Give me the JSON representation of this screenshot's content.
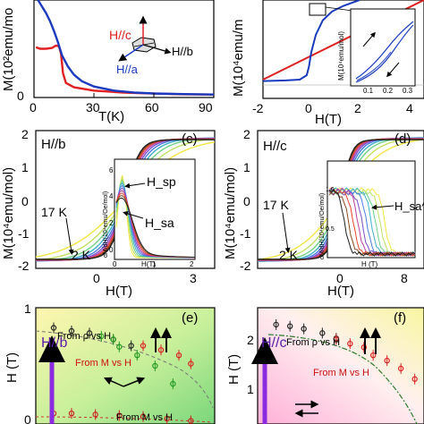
{
  "chart_data": [
    {
      "panel": "a",
      "type": "line",
      "xlabel": "T(K)",
      "ylabel": "M(10²emu/mo",
      "xticks": [
        "0",
        "30",
        "60",
        "90"
      ],
      "yticks": [
        "0"
      ],
      "xlim": [
        0,
        90
      ],
      "ylim": [
        0,
        12
      ],
      "inset_labels": [
        "H//c",
        "H//b",
        "H//a"
      ],
      "series": [
        {
          "name": "H//c",
          "color": "#e02020",
          "x": [
            1,
            3,
            6,
            9,
            11,
            12.5,
            13.5,
            14.5,
            16,
            20,
            30,
            45,
            60,
            75,
            90
          ],
          "y": [
            6.2,
            6.0,
            6.0,
            6.1,
            6.4,
            6.3,
            5.4,
            3.0,
            1.8,
            1.25,
            0.85,
            0.6,
            0.48,
            0.4,
            0.36
          ]
        },
        {
          "name": "H//a",
          "color": "#1a3bbf",
          "x": [
            2,
            3,
            4,
            6,
            8,
            10,
            12,
            14,
            17,
            20,
            24,
            30,
            40,
            50,
            60,
            75,
            90
          ],
          "y": [
            12,
            11.6,
            11.2,
            10.4,
            9.4,
            8.2,
            6.8,
            5.2,
            3.8,
            2.8,
            2.0,
            1.35,
            0.85,
            0.62,
            0.5,
            0.42,
            0.36
          ]
        }
      ]
    },
    {
      "panel": "b",
      "type": "line",
      "xlabel": "H(T)",
      "ylabel": "M(10⁴emu/m",
      "xticks": [
        "-2",
        "0",
        "2",
        "4"
      ],
      "xlim": [
        -2,
        5
      ],
      "ylim": [
        -1.2,
        2.2
      ],
      "series": [
        {
          "name": "red",
          "color": "#e02020",
          "x": [
            -2,
            5
          ],
          "y": [
            -0.55,
            2.2
          ]
        },
        {
          "name": "blue",
          "color": "#1a3bbf",
          "x": [
            -2,
            -1,
            -0.4,
            -0.1,
            0,
            0.1,
            0.3,
            0.6,
            1.0,
            1.5,
            2.2
          ],
          "y": [
            -0.6,
            -0.58,
            -0.55,
            -0.4,
            -0.1,
            0.4,
            1.0,
            1.5,
            1.8,
            2.0,
            2.2
          ]
        }
      ],
      "inset": {
        "ylabel": "M(10⁴emu/mol)",
        "xticks": [
          "0.1",
          "0.2",
          "0.3"
        ]
      }
    },
    {
      "panel": "c",
      "type": "line",
      "label": "(c)",
      "field_label": "H//b",
      "xlabel": "H(T)",
      "ylabel": "M(10⁴emu/mol)",
      "xticks": [
        "0",
        "3"
      ],
      "yticks": [
        "-2",
        "-1",
        "0",
        "1",
        "2"
      ],
      "xlim": [
        -4.5,
        4.5
      ],
      "ylim": [
        -2.2,
        2.2
      ],
      "temperatures": [
        "17 K",
        "2 K"
      ],
      "inset": {
        "ylabel": "dM/dH(10⁴emu/Oe/mol)",
        "xlabel": "H(T)",
        "xticks": [
          "0",
          "1",
          "2"
        ],
        "yticks": [
          "0",
          "2",
          "4",
          "6"
        ],
        "labels": [
          "H_sp",
          "H_sa"
        ]
      }
    },
    {
      "panel": "d",
      "type": "line",
      "label": "(d)",
      "field_label": "H//c",
      "xlabel": "H(T)",
      "ylabel": "M(10⁴emu/mol)",
      "xticks": [
        "0",
        "8"
      ],
      "yticks": [
        "-2",
        "-1",
        "0",
        "1",
        "2"
      ],
      "xlim": [
        -10,
        10
      ],
      "ylim": [
        -2.2,
        2.2
      ],
      "temperatures": [
        "17 K",
        "2 K"
      ],
      "inset": {
        "ylabel": "dM/dH(10⁴emu/Oe/mol)",
        "xlabel": "H (T)",
        "yticks": [
          "0.5",
          "1.0"
        ],
        "labels": [
          "H_sa^⊥"
        ]
      }
    },
    {
      "panel": "e",
      "type": "scatter",
      "label": "(e)",
      "field_label": "H//b",
      "ylabel": "H (T)",
      "yticks": [
        "0",
        "1"
      ],
      "ylim": [
        0,
        1.1
      ],
      "annotations": [
        "From ρ vs H",
        "From M vs H",
        "From M vs H"
      ],
      "series": [
        {
          "name": "From ρ vs H",
          "color": "#222222",
          "x": [
            1.5,
            3.0,
            4.5,
            6.5,
            8.0
          ],
          "y": [
            0.91,
            0.88,
            0.86,
            0.8,
            0.74
          ]
        },
        {
          "name": "From M vs H",
          "color": "#dd2222",
          "x": [
            9.0,
            10.5,
            12.0,
            13.0
          ],
          "y": [
            0.74,
            0.7,
            0.65,
            0.57
          ]
        },
        {
          "name": "green",
          "color": "#229922",
          "x": [
            5.5,
            6.5,
            7.0,
            8.5,
            10.0,
            11.5
          ],
          "y": [
            0.83,
            0.8,
            0.73,
            0.65,
            0.55,
            0.38
          ]
        },
        {
          "name": "From M vs H (low)",
          "color": "#cc2222",
          "x": [
            1.5,
            3,
            5,
            7,
            9,
            11,
            13
          ],
          "y": [
            0.1,
            0.1,
            0.09,
            0.08,
            0.07,
            0.05,
            0.03
          ]
        }
      ]
    },
    {
      "panel": "f",
      "type": "scatter",
      "label": "(f)",
      "field_label": "H//c",
      "ylabel": "H (T)",
      "yticks": [
        "1",
        "2"
      ],
      "ylim": [
        0,
        2.2
      ],
      "annotations": [
        "From ρ vs H",
        "From M vs H"
      ],
      "series": [
        {
          "name": "From ρ vs H",
          "color": "#222222",
          "x": [
            2,
            3.5,
            5,
            7,
            8.5
          ],
          "y": [
            1.88,
            1.85,
            1.8,
            1.72,
            1.62
          ]
        },
        {
          "name": "From M vs H",
          "color": "#dd2222",
          "x": [
            8.5,
            10,
            11.5,
            12.5,
            14,
            15.5,
            17
          ],
          "y": [
            1.6,
            1.52,
            1.45,
            1.3,
            1.2,
            1.05,
            0.85
          ]
        }
      ]
    }
  ]
}
